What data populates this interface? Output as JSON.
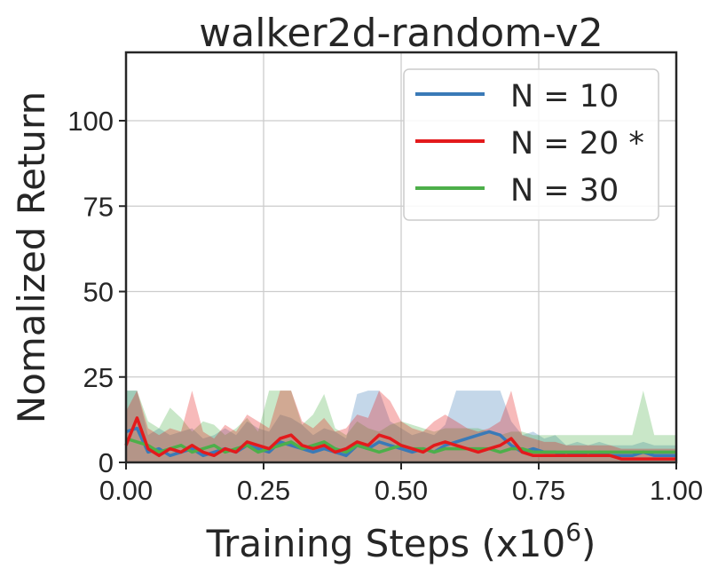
{
  "chart_data": {
    "type": "line",
    "title": "walker2d-random-v2",
    "xlabel_main": "Training Steps (x10",
    "xlabel_sup": "6",
    "xlabel_close": ")",
    "ylabel": "Nomalized Return",
    "xlim": [
      0,
      1
    ],
    "ylim": [
      0,
      120
    ],
    "xticks": [
      0,
      0.25,
      0.5,
      0.75,
      1.0
    ],
    "xtick_labels": [
      "0.00",
      "0.25",
      "0.50",
      "0.75",
      "1.00"
    ],
    "yticks": [
      0,
      25,
      50,
      75,
      100
    ],
    "ytick_labels": [
      "0",
      "25",
      "50",
      "75",
      "100"
    ],
    "grid": true,
    "legend_position": "top-right",
    "legend_labels": [
      "N = 10",
      "N = 20 *",
      "N = 30"
    ],
    "series": [
      {
        "name": "N = 10",
        "color": "#3a7ab7",
        "x": [
          0.0,
          0.02,
          0.04,
          0.06,
          0.08,
          0.1,
          0.12,
          0.14,
          0.16,
          0.18,
          0.2,
          0.22,
          0.24,
          0.26,
          0.28,
          0.3,
          0.32,
          0.34,
          0.36,
          0.38,
          0.4,
          0.42,
          0.44,
          0.46,
          0.48,
          0.5,
          0.52,
          0.54,
          0.56,
          0.58,
          0.6,
          0.62,
          0.64,
          0.66,
          0.68,
          0.7,
          0.72,
          0.74,
          0.76,
          0.78,
          0.8,
          0.82,
          0.84,
          0.86,
          0.88,
          0.9,
          0.92,
          0.94,
          0.96,
          0.98,
          1.0
        ],
        "mean": [
          9,
          10,
          3,
          4,
          2,
          3,
          4,
          2,
          3,
          4,
          3,
          5,
          4,
          3,
          6,
          5,
          4,
          3,
          4,
          3,
          2,
          5,
          4,
          6,
          5,
          4,
          3,
          4,
          3,
          5,
          6,
          7,
          8,
          9,
          8,
          5,
          3,
          4,
          3,
          3,
          2,
          3,
          2,
          3,
          2,
          2,
          2,
          3,
          2,
          2,
          2
        ],
        "upper": [
          21,
          21,
          8,
          10,
          8,
          9,
          10,
          7,
          8,
          10,
          8,
          12,
          10,
          9,
          14,
          13,
          11,
          8,
          10,
          9,
          7,
          20,
          21,
          21,
          12,
          10,
          8,
          9,
          8,
          11,
          21,
          21,
          21,
          21,
          21,
          12,
          8,
          9,
          7,
          8,
          5,
          6,
          5,
          6,
          5,
          5,
          5,
          6,
          5,
          5,
          5
        ],
        "lower": [
          0,
          0,
          0,
          0,
          0,
          0,
          0,
          0,
          0,
          0,
          0,
          0,
          0,
          0,
          0,
          0,
          0,
          0,
          0,
          0,
          0,
          0,
          0,
          0,
          0,
          0,
          0,
          0,
          0,
          0,
          0,
          0,
          0,
          0,
          0,
          0,
          0,
          0,
          0,
          0,
          0,
          0,
          0,
          0,
          0,
          0,
          0,
          0,
          0,
          0,
          0
        ]
      },
      {
        "name": "N = 20 *",
        "color": "#e31a1c",
        "x": [
          0.0,
          0.02,
          0.04,
          0.06,
          0.08,
          0.1,
          0.12,
          0.14,
          0.16,
          0.18,
          0.2,
          0.22,
          0.24,
          0.26,
          0.28,
          0.3,
          0.32,
          0.34,
          0.36,
          0.38,
          0.4,
          0.42,
          0.44,
          0.46,
          0.48,
          0.5,
          0.52,
          0.54,
          0.56,
          0.58,
          0.6,
          0.62,
          0.64,
          0.66,
          0.68,
          0.7,
          0.72,
          0.74,
          0.76,
          0.78,
          0.8,
          0.82,
          0.84,
          0.86,
          0.88,
          0.9,
          0.92,
          0.94,
          0.96,
          0.98,
          1.0
        ],
        "mean": [
          5,
          13,
          4,
          2,
          4,
          3,
          5,
          3,
          2,
          4,
          3,
          6,
          5,
          4,
          7,
          8,
          5,
          4,
          5,
          3,
          4,
          6,
          5,
          8,
          7,
          5,
          4,
          3,
          5,
          6,
          5,
          4,
          3,
          4,
          5,
          7,
          3,
          2,
          2,
          2,
          2,
          2,
          2,
          2,
          2,
          1,
          1,
          1,
          1,
          1,
          1
        ],
        "upper": [
          15,
          21,
          10,
          8,
          10,
          9,
          21,
          9,
          7,
          11,
          9,
          14,
          12,
          10,
          21,
          21,
          12,
          10,
          13,
          9,
          10,
          14,
          13,
          21,
          18,
          12,
          10,
          9,
          12,
          14,
          12,
          10,
          9,
          10,
          12,
          21,
          8,
          7,
          6,
          6,
          5,
          5,
          5,
          5,
          5,
          4,
          4,
          4,
          4,
          4,
          4
        ],
        "lower": [
          0,
          0,
          0,
          0,
          0,
          0,
          0,
          0,
          0,
          0,
          0,
          0,
          0,
          0,
          0,
          0,
          0,
          0,
          0,
          0,
          0,
          0,
          0,
          0,
          0,
          0,
          0,
          0,
          0,
          0,
          0,
          0,
          0,
          0,
          0,
          0,
          0,
          0,
          0,
          0,
          0,
          0,
          0,
          0,
          0,
          0,
          0,
          0,
          0,
          0,
          0
        ]
      },
      {
        "name": "N = 30",
        "color": "#4daf4a",
        "x": [
          0.0,
          0.02,
          0.04,
          0.06,
          0.08,
          0.1,
          0.12,
          0.14,
          0.16,
          0.18,
          0.2,
          0.22,
          0.24,
          0.26,
          0.28,
          0.3,
          0.32,
          0.34,
          0.36,
          0.38,
          0.4,
          0.42,
          0.44,
          0.46,
          0.48,
          0.5,
          0.52,
          0.54,
          0.56,
          0.58,
          0.6,
          0.62,
          0.64,
          0.66,
          0.68,
          0.7,
          0.72,
          0.74,
          0.76,
          0.78,
          0.8,
          0.82,
          0.84,
          0.86,
          0.88,
          0.9,
          0.92,
          0.94,
          0.96,
          0.98,
          1.0
        ],
        "mean": [
          7,
          6,
          5,
          3,
          4,
          5,
          3,
          4,
          5,
          3,
          4,
          5,
          3,
          4,
          5,
          6,
          4,
          5,
          6,
          4,
          3,
          5,
          4,
          3,
          4,
          5,
          4,
          4,
          3,
          4,
          4,
          4,
          4,
          4,
          3,
          4,
          4,
          3,
          3,
          3,
          3,
          3,
          3,
          3,
          3,
          3,
          3,
          3,
          3,
          3,
          3
        ],
        "upper": [
          21,
          21,
          12,
          10,
          16,
          13,
          9,
          12,
          11,
          8,
          10,
          13,
          9,
          21,
          21,
          21,
          11,
          14,
          20,
          10,
          8,
          12,
          10,
          9,
          11,
          12,
          11,
          10,
          9,
          10,
          10,
          10,
          10,
          9,
          8,
          9,
          9,
          8,
          8,
          8,
          8,
          8,
          8,
          8,
          8,
          8,
          8,
          21,
          8,
          8,
          8
        ],
        "lower": [
          0,
          0,
          0,
          0,
          0,
          0,
          0,
          0,
          0,
          0,
          0,
          0,
          0,
          0,
          0,
          0,
          0,
          0,
          0,
          0,
          0,
          0,
          0,
          0,
          0,
          0,
          0,
          0,
          0,
          0,
          0,
          0,
          0,
          0,
          0,
          0,
          0,
          0,
          0,
          0,
          0,
          0,
          0,
          0,
          0,
          0,
          0,
          0,
          0,
          0,
          0
        ]
      }
    ]
  }
}
